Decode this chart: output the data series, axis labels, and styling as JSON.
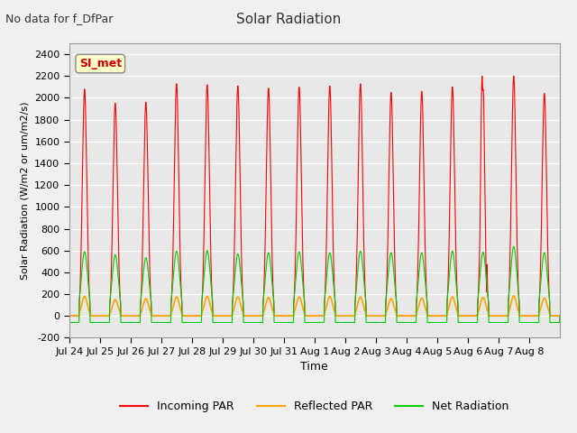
{
  "title": "Solar Radiation",
  "subtitle": "No data for f_DfPar",
  "xlabel": "Time",
  "ylabel": "Solar Radiation (W/m2 or um/m2/s)",
  "ylim": [
    -200,
    2500
  ],
  "yticks": [
    -200,
    0,
    200,
    400,
    600,
    800,
    1000,
    1200,
    1400,
    1600,
    1800,
    2000,
    2200,
    2400
  ],
  "bg_color": "#e8e8e8",
  "line_colors": {
    "incoming": "#ff0000",
    "reflected": "#ffa500",
    "net": "#00cc00"
  },
  "legend_label": "SI_met",
  "tick_labels": [
    "Jul 24",
    "Jul 25",
    "Jul 26",
    "Jul 27",
    "Jul 28",
    "Jul 29",
    "Jul 30",
    "Jul 31",
    "Aug 1",
    "Aug 2",
    "Aug 3",
    "Aug 4",
    "Aug 5",
    "Aug 6",
    "Aug 7",
    "Aug 8"
  ],
  "incoming_peaks": [
    2080,
    1950,
    1960,
    2130,
    2120,
    2110,
    2090,
    2100,
    2110,
    2130,
    2050,
    2060,
    2100,
    2080,
    2200,
    2040
  ],
  "reflected_peaks": [
    180,
    150,
    160,
    175,
    180,
    175,
    170,
    175,
    180,
    175,
    160,
    165,
    175,
    170,
    185,
    165
  ],
  "net_peaks": [
    590,
    560,
    535,
    595,
    600,
    570,
    580,
    590,
    580,
    595,
    580,
    580,
    595,
    585,
    635,
    580
  ],
  "n_days": 16,
  "points_per_day": 144
}
